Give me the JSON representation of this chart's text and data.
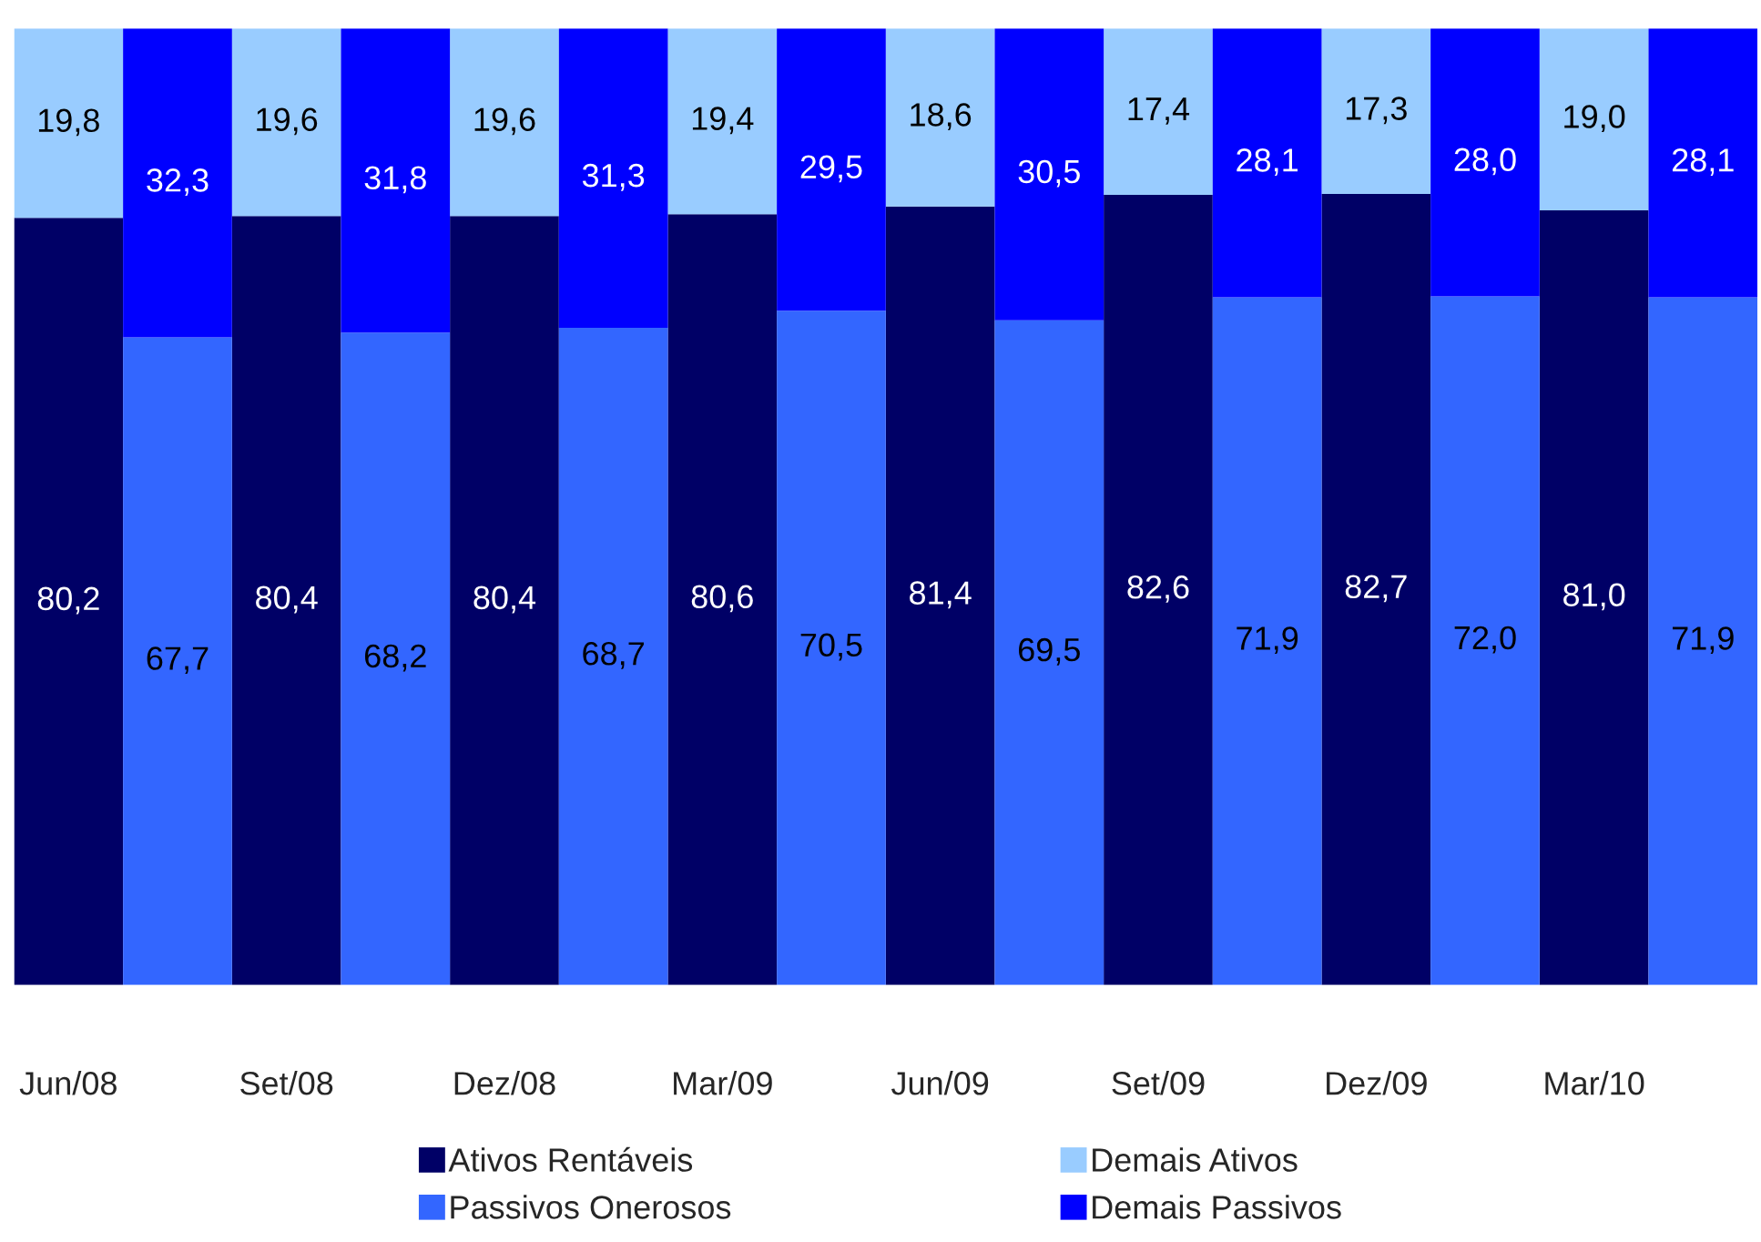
{
  "chart_data": {
    "type": "bar",
    "stacked": true,
    "tick_labels": "x",
    "ylim": [
      0,
      100
    ],
    "legend": "bottom",
    "grid": false,
    "categories": [
      "Jun/08",
      null,
      "Set/08",
      null,
      "Dez/08",
      null,
      "Mar/09",
      null,
      "Jun/09",
      null,
      "Set/09",
      null,
      "Dez/09",
      null,
      "Mar/10",
      null
    ],
    "series": [
      {
        "name": "Ativos Rentáveis",
        "color": "#000066",
        "values": [
          80.2,
          null,
          80.4,
          null,
          80.4,
          null,
          80.6,
          null,
          81.4,
          null,
          82.6,
          null,
          82.7,
          null,
          81.0,
          null
        ],
        "value_labels": [
          "80,2",
          null,
          "80,4",
          null,
          "80,4",
          null,
          "80,6",
          null,
          "81,4",
          null,
          "82,6",
          null,
          "82,7",
          null,
          "81,0",
          null
        ]
      },
      {
        "name": "Passivos Onerosos",
        "color": "#3366ff",
        "values": [
          null,
          67.7,
          null,
          68.2,
          null,
          68.7,
          null,
          70.5,
          null,
          69.5,
          null,
          71.9,
          null,
          72.0,
          null,
          71.9
        ],
        "value_labels": [
          null,
          "67,7",
          null,
          "68,2",
          null,
          "68,7",
          null,
          "70,5",
          null,
          "69,5",
          null,
          "71,9",
          null,
          "72,0",
          null,
          "71,9"
        ]
      },
      {
        "name": "Demais Ativos",
        "color": "#99ccff",
        "values": [
          19.8,
          null,
          19.6,
          null,
          19.6,
          null,
          19.4,
          null,
          18.6,
          null,
          17.4,
          null,
          17.3,
          null,
          19.0,
          null
        ],
        "value_labels": [
          "19,8",
          null,
          "19,6",
          null,
          "19,6",
          null,
          "19,4",
          null,
          "18,6",
          null,
          "17,4",
          null,
          "17,3",
          null,
          "19,0",
          null
        ]
      },
      {
        "name": "Demais Passivos",
        "color": "#0000ff",
        "values": [
          null,
          32.3,
          null,
          31.8,
          null,
          31.3,
          null,
          29.5,
          null,
          30.5,
          null,
          28.1,
          null,
          28.0,
          null,
          28.1
        ],
        "value_labels": [
          null,
          "32,3",
          null,
          "31,8",
          null,
          "31,3",
          null,
          "29,5",
          null,
          "30,5",
          null,
          "28,1",
          null,
          "28,0",
          null,
          "28,1"
        ]
      }
    ]
  }
}
